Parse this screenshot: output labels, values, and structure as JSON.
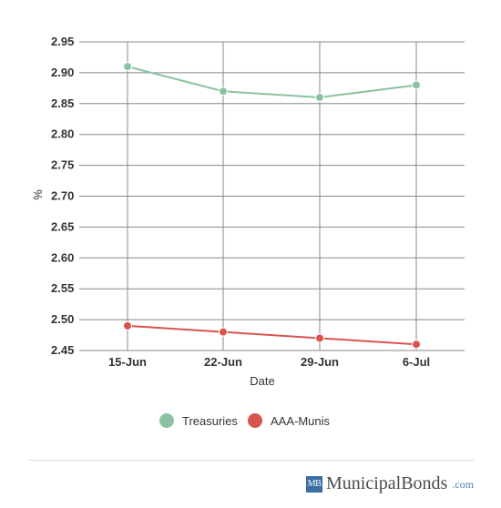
{
  "chart_data": {
    "type": "line",
    "xlabel": "Date",
    "ylabel": "%",
    "categories": [
      "15-Jun",
      "22-Jun",
      "29-Jun",
      "6-Jul"
    ],
    "ylim": [
      2.45,
      2.95
    ],
    "yticks": [
      "2.95",
      "2.90",
      "2.85",
      "2.80",
      "2.75",
      "2.70",
      "2.65",
      "2.60",
      "2.55",
      "2.50",
      "2.45"
    ],
    "grid": true,
    "legend_position": "bottom",
    "series": [
      {
        "name": "Treasuries",
        "color": "#8bc3a2",
        "values": [
          2.91,
          2.87,
          2.86,
          2.88
        ]
      },
      {
        "name": "AAA-Munis",
        "color": "#d9534f",
        "values": [
          2.49,
          2.48,
          2.47,
          2.46
        ]
      }
    ]
  },
  "footer": {
    "logo_text": "MB",
    "brand_name": "MunicipalBonds",
    "brand_domain": ".com"
  }
}
